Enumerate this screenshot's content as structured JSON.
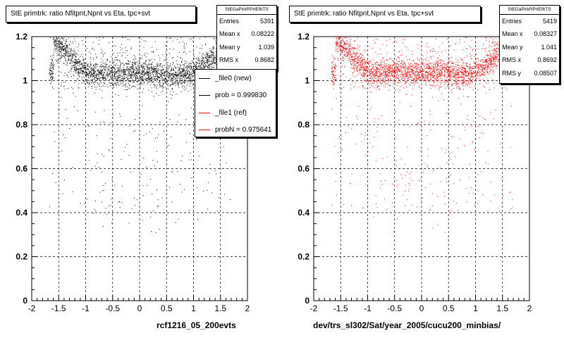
{
  "chart_data": [
    {
      "type": "scatter",
      "title": "StE primtrk: ratio Nfitpnt,Npnt vs Eta, tpc+svt",
      "xlabel": "rcf1216_05_200evts",
      "ylabel": "",
      "xlim": [
        -2,
        2
      ],
      "ylim": [
        0,
        1.2
      ],
      "x_ticks": [
        "-2",
        "-1.5",
        "-1",
        "-0.5",
        "0",
        "0.5",
        "1",
        "1.5",
        "2"
      ],
      "y_ticks": [
        "0",
        "0.2",
        "0.4",
        "0.6",
        "0.8",
        "1",
        "1.2"
      ],
      "grid": true,
      "marker_color": "#000000",
      "series": [
        {
          "name": "_file0 (new)",
          "color": "#000000",
          "values": [
            [
              -1.6,
              1.18
            ],
            [
              -1.5,
              1.16
            ],
            [
              -1.4,
              1.14
            ],
            [
              -1.3,
              1.12
            ],
            [
              -1.2,
              1.08
            ],
            [
              -1.1,
              1.06
            ],
            [
              -1.0,
              1.04
            ],
            [
              -0.8,
              1.03
            ],
            [
              -0.5,
              1.03
            ],
            [
              -0.2,
              1.03
            ],
            [
              0.0,
              1.04
            ],
            [
              0.3,
              1.03
            ],
            [
              0.6,
              1.02
            ],
            [
              0.9,
              1.03
            ],
            [
              1.1,
              1.06
            ],
            [
              1.3,
              1.1
            ],
            [
              1.5,
              1.14
            ],
            [
              1.6,
              1.18
            ]
          ]
        }
      ]
    },
    {
      "type": "scatter",
      "title": "StE primtrk: ratio Nfitpnt,Npnt vs Eta, tpc+svt",
      "xlabel": "dev/trs_sl302/Sat/year_2005/cucu200_minbias/",
      "ylabel": "",
      "xlim": [
        -2,
        2
      ],
      "ylim": [
        0,
        1.2
      ],
      "x_ticks": [
        "-2",
        "-1.5",
        "-1",
        "-0.5",
        "0",
        "0.5",
        "1",
        "1.5",
        "2"
      ],
      "y_ticks": [
        "0",
        "0.2",
        "0.4",
        "0.6",
        "0.8",
        "1",
        "1.2"
      ],
      "grid": true,
      "marker_color": "#ff0000",
      "series": [
        {
          "name": "_file1 (ref)",
          "color": "#ff0000",
          "values": [
            [
              -1.6,
              1.18
            ],
            [
              -1.5,
              1.16
            ],
            [
              -1.4,
              1.14
            ],
            [
              -1.3,
              1.12
            ],
            [
              -1.2,
              1.08
            ],
            [
              -1.1,
              1.06
            ],
            [
              -1.0,
              1.04
            ],
            [
              -0.8,
              1.03
            ],
            [
              -0.5,
              1.04
            ],
            [
              -0.2,
              1.04
            ],
            [
              0.0,
              1.04
            ],
            [
              0.3,
              1.04
            ],
            [
              0.6,
              1.03
            ],
            [
              0.9,
              1.03
            ],
            [
              1.1,
              1.06
            ],
            [
              1.3,
              1.1
            ],
            [
              1.5,
              1.14
            ],
            [
              1.6,
              1.18
            ]
          ]
        }
      ]
    }
  ],
  "left_stats": {
    "header": "StEGaPirkRPrtEfbTS",
    "rows": [
      {
        "label": "Entries",
        "value": "5391"
      },
      {
        "label": "Mean x",
        "value": "0.08222"
      },
      {
        "label": "Mean y",
        "value": "1.039"
      },
      {
        "label": "RMS x",
        "value": "0.8682"
      }
    ]
  },
  "right_stats": {
    "header": "StEGaPirkRPrtEfbTS",
    "rows": [
      {
        "label": "Entries",
        "value": "5419"
      },
      {
        "label": "Mean x",
        "value": "0.08327"
      },
      {
        "label": "Mean y",
        "value": "1.041"
      },
      {
        "label": "RMS x",
        "value": "0.8692"
      },
      {
        "label": "RMS y",
        "value": "0.08507"
      }
    ]
  },
  "legend": {
    "items": [
      {
        "label": "_file0 (new)",
        "color": "#000000"
      },
      {
        "label": "prob = 0.999830",
        "color": "#000000"
      },
      {
        "label": "_file1 (ref)",
        "color": "#ff0000"
      },
      {
        "label": "probN = 0.975641",
        "color": "#ff0000"
      }
    ]
  }
}
